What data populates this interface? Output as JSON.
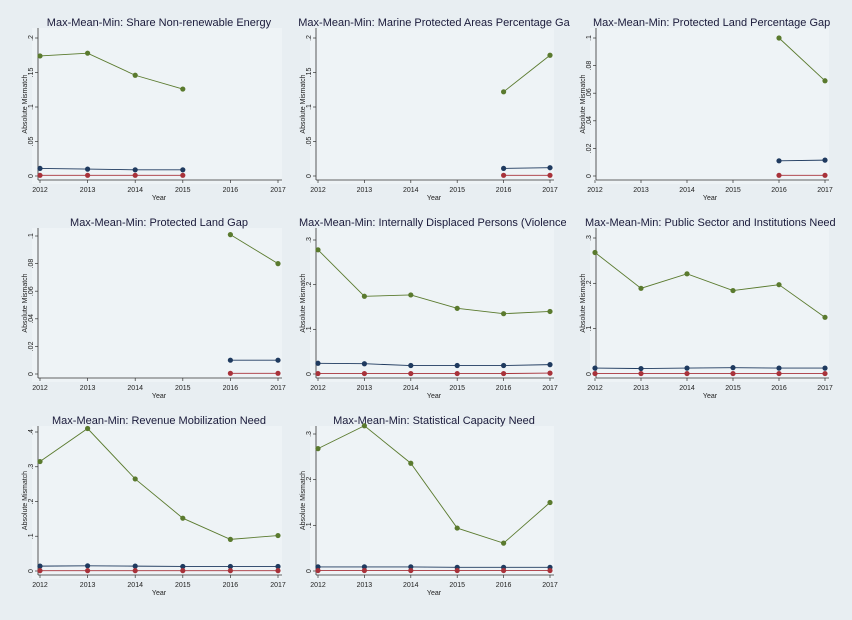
{
  "chart_data": [
    {
      "type": "line",
      "title": "Max-Mean-Min: Share Non-renewable Energy",
      "xlabel": "Year",
      "ylabel": "Absolute Mismatch",
      "categories": [
        "2012",
        "2013",
        "2014",
        "2015",
        "2016",
        "2017"
      ],
      "yticks": [
        "0",
        ".05",
        ".1",
        ".15",
        ".2"
      ],
      "ylim": [
        0,
        0.2
      ],
      "series": [
        {
          "color": "#5a7a2e",
          "values": [
            0.174,
            0.178,
            0.146,
            0.126,
            null,
            null
          ]
        },
        {
          "color": "#1f3a5f",
          "values": [
            0.011,
            0.01,
            0.009,
            0.009,
            null,
            null
          ]
        },
        {
          "color": "#a8323a",
          "values": [
            0.001,
            0.001,
            0.001,
            0.001,
            null,
            null
          ]
        }
      ]
    },
    {
      "type": "line",
      "title": "Max-Mean-Min: Marine Protected Areas Percentage Ga",
      "xlabel": "Year",
      "ylabel": "Absolute Mismatch",
      "categories": [
        "2012",
        "2013",
        "2014",
        "2015",
        "2016",
        "2017"
      ],
      "yticks": [
        "0",
        ".05",
        ".1",
        ".15",
        ".2"
      ],
      "ylim": [
        0,
        0.2
      ],
      "series": [
        {
          "color": "#5a7a2e",
          "values": [
            null,
            null,
            null,
            null,
            0.122,
            0.175
          ]
        },
        {
          "color": "#1f3a5f",
          "values": [
            null,
            null,
            null,
            null,
            0.011,
            0.012
          ]
        },
        {
          "color": "#a8323a",
          "values": [
            null,
            null,
            null,
            null,
            0.001,
            0.001
          ]
        }
      ]
    },
    {
      "type": "line",
      "title": "Max-Mean-Min: Protected Land Percentage Gap",
      "xlabel": "Year",
      "ylabel": "Absolute Mismatch",
      "categories": [
        "2012",
        "2013",
        "2014",
        "2015",
        "2016",
        "2017"
      ],
      "yticks": [
        "0",
        ".02",
        ".04",
        ".06",
        ".08",
        ".1"
      ],
      "ylim": [
        0,
        0.1
      ],
      "series": [
        {
          "color": "#5a7a2e",
          "values": [
            null,
            null,
            null,
            null,
            0.1,
            0.069
          ]
        },
        {
          "color": "#1f3a5f",
          "values": [
            null,
            null,
            null,
            null,
            0.011,
            0.0115
          ]
        },
        {
          "color": "#a8323a",
          "values": [
            null,
            null,
            null,
            null,
            0.0005,
            0.0005
          ]
        }
      ]
    },
    {
      "type": "line",
      "title": "Max-Mean-Min: Protected Land Gap",
      "xlabel": "Year",
      "ylabel": "Absolute Mismatch",
      "categories": [
        "2012",
        "2013",
        "2014",
        "2015",
        "2016",
        "2017"
      ],
      "yticks": [
        "0",
        ".02",
        ".04",
        ".06",
        ".08",
        ".1"
      ],
      "ylim": [
        0,
        0.1
      ],
      "series": [
        {
          "color": "#5a7a2e",
          "values": [
            null,
            null,
            null,
            null,
            0.101,
            0.08
          ]
        },
        {
          "color": "#1f3a5f",
          "values": [
            null,
            null,
            null,
            null,
            0.01,
            0.01
          ]
        },
        {
          "color": "#a8323a",
          "values": [
            null,
            null,
            null,
            null,
            0.0005,
            0.0005
          ]
        }
      ]
    },
    {
      "type": "line",
      "title": "Max-Mean-Min: Internally Displaced Persons (Violence",
      "xlabel": "Year",
      "ylabel": "Absolute Mismatch",
      "categories": [
        "2012",
        "2013",
        "2014",
        "2015",
        "2016",
        "2017"
      ],
      "yticks": [
        "0",
        ".1",
        ".2",
        ".3"
      ],
      "ylim": [
        0,
        0.3
      ],
      "series": [
        {
          "color": "#5a7a2e",
          "values": [
            0.278,
            0.174,
            0.177,
            0.147,
            0.135,
            0.14
          ]
        },
        {
          "color": "#1f3a5f",
          "values": [
            0.024,
            0.023,
            0.019,
            0.019,
            0.019,
            0.021
          ]
        },
        {
          "color": "#a8323a",
          "values": [
            0.001,
            0.001,
            0.001,
            0.001,
            0.001,
            0.002
          ]
        }
      ]
    },
    {
      "type": "line",
      "title": "Max-Mean-Min: Public Sector and Institutions Need",
      "xlabel": "Year",
      "ylabel": "Absolute Mismatch",
      "categories": [
        "2012",
        "2013",
        "2014",
        "2015",
        "2016",
        "2017"
      ],
      "yticks": [
        "0",
        ".1",
        ".2",
        ".3"
      ],
      "ylim": [
        0,
        0.3
      ],
      "series": [
        {
          "color": "#5a7a2e",
          "values": [
            0.268,
            0.189,
            0.221,
            0.184,
            0.197,
            0.125
          ]
        },
        {
          "color": "#1f3a5f",
          "values": [
            0.013,
            0.012,
            0.013,
            0.014,
            0.013,
            0.013
          ]
        },
        {
          "color": "#a8323a",
          "values": [
            0.001,
            0.001,
            0.001,
            0.001,
            0.001,
            0.001
          ]
        }
      ]
    },
    {
      "type": "line",
      "title": "Max-Mean-Min: Revenue Mobilization Need",
      "xlabel": "Year",
      "ylabel": "Absolute Mismatch",
      "categories": [
        "2012",
        "2013",
        "2014",
        "2015",
        "2016",
        "2017"
      ],
      "yticks": [
        "0",
        ".1",
        ".2",
        ".3",
        ".4"
      ],
      "ylim": [
        0,
        0.4
      ],
      "series": [
        {
          "color": "#5a7a2e",
          "values": [
            0.315,
            0.41,
            0.265,
            0.152,
            0.091,
            0.102
          ]
        },
        {
          "color": "#1f3a5f",
          "values": [
            0.014,
            0.015,
            0.014,
            0.013,
            0.013,
            0.013
          ]
        },
        {
          "color": "#a8323a",
          "values": [
            0.001,
            0.001,
            0.001,
            0.001,
            0.001,
            0.001
          ]
        }
      ]
    },
    {
      "type": "line",
      "title": "Max-Mean-Min: Statistical Capacity Need",
      "xlabel": "Year",
      "ylabel": "Absolute Mismatch",
      "categories": [
        "2012",
        "2013",
        "2014",
        "2015",
        "2016",
        "2017"
      ],
      "yticks": [
        "0",
        ".1",
        ".2",
        ".3"
      ],
      "ylim": [
        0,
        0.3
      ],
      "series": [
        {
          "color": "#5a7a2e",
          "values": [
            0.268,
            0.318,
            0.236,
            0.094,
            0.061,
            0.15
          ]
        },
        {
          "color": "#1f3a5f",
          "values": [
            0.009,
            0.009,
            0.009,
            0.008,
            0.008,
            0.008
          ]
        },
        {
          "color": "#a8323a",
          "values": [
            0.001,
            0.001,
            0.001,
            0.001,
            0.001,
            0.001
          ]
        }
      ]
    }
  ]
}
